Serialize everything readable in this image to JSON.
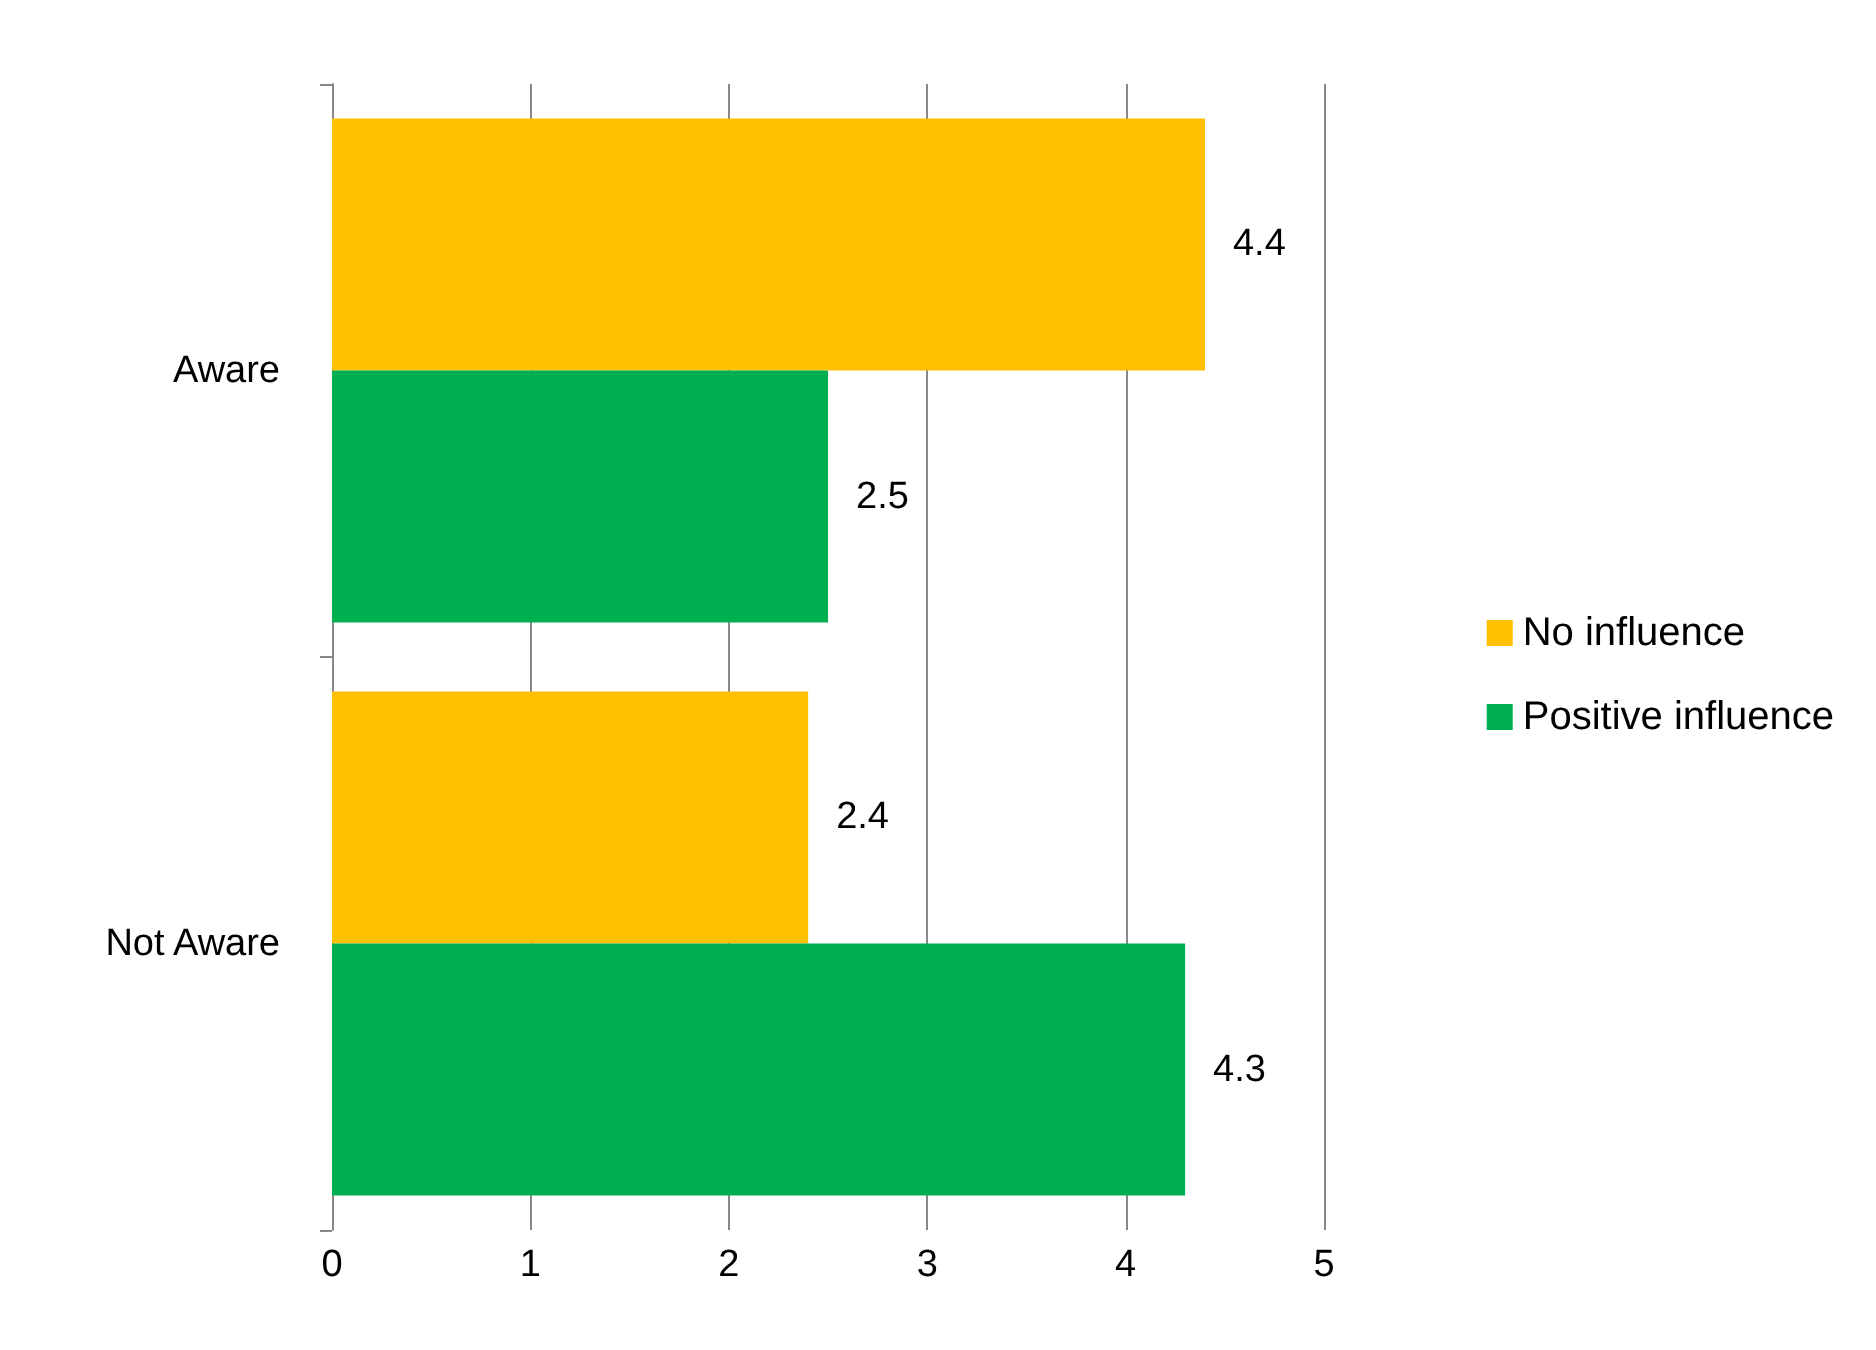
{
  "chart_data": {
    "type": "bar",
    "orientation": "horizontal",
    "categories": [
      "Aware",
      "Not Aware"
    ],
    "series": [
      {
        "name": "No influence",
        "color": "#ffc000",
        "values": [
          4.4,
          2.4
        ]
      },
      {
        "name": "Positive influence",
        "color": "#00b050",
        "values": [
          2.5,
          4.3
        ]
      }
    ],
    "xlim": [
      0,
      5
    ],
    "xticks": [
      0,
      1,
      2,
      3,
      4,
      5
    ],
    "grid": "x",
    "legend": "right",
    "data_labels": true
  }
}
